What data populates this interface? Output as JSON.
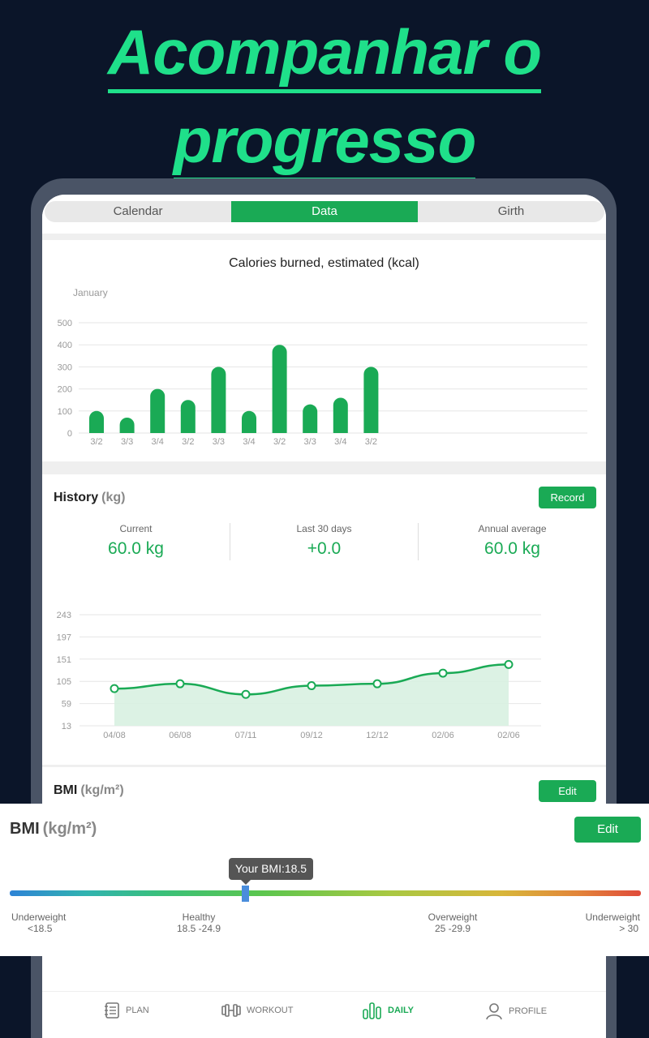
{
  "headline": {
    "line1": "Acompanhar o",
    "line2": "progresso"
  },
  "tabs": [
    {
      "label": "Calendar",
      "active": false
    },
    {
      "label": "Data",
      "active": true
    },
    {
      "label": "Girth",
      "active": false
    }
  ],
  "calories": {
    "title": "Calories burned, estimated (kcal)",
    "month": "January"
  },
  "history": {
    "title": "History",
    "unit": "(kg)",
    "record_label": "Record",
    "stats": [
      {
        "label": "Current",
        "value": "60.0 kg"
      },
      {
        "label": "Last 30 days",
        "value": "+0.0"
      },
      {
        "label": "Annual average",
        "value": "60.0 kg"
      }
    ]
  },
  "bmi": {
    "title": "BMI",
    "unit": "(kg/m²)",
    "edit_label": "Edit",
    "tooltip": "Your BMI:18.5",
    "value": 18.5,
    "ranges": [
      {
        "name": "Underweight",
        "range": "<18.5"
      },
      {
        "name": "Healthy",
        "range": "18.5 -24.9"
      },
      {
        "name": "Overweight",
        "range": "25 -29.9"
      },
      {
        "name": "Underweight",
        "range": "> 30"
      }
    ]
  },
  "nav": [
    {
      "label": "PLAN",
      "icon": "plan-icon",
      "active": false
    },
    {
      "label": "WORKOUT",
      "icon": "dumbbell-icon",
      "active": false
    },
    {
      "label": "DAILY",
      "icon": "bar-chart-icon",
      "active": true
    },
    {
      "label": "PROFILE",
      "icon": "person-icon",
      "active": false
    }
  ],
  "colors": {
    "accent": "#1aaa55",
    "headline": "#1fe08a",
    "background": "#0b1529"
  },
  "chart_data": [
    {
      "type": "bar",
      "title": "Calories burned, estimated (kcal)",
      "categories": [
        "3/2",
        "3/3",
        "3/4",
        "3/2",
        "3/3",
        "3/4",
        "3/2",
        "3/3",
        "3/4",
        "3/2"
      ],
      "values": [
        100,
        70,
        200,
        150,
        300,
        100,
        400,
        130,
        160,
        300
      ],
      "ylim": [
        0,
        500
      ],
      "yticks": [
        0,
        100,
        200,
        300,
        400,
        500
      ],
      "grid": true
    },
    {
      "type": "area",
      "categories": [
        "04/08",
        "06/08",
        "07/11",
        "09/12",
        "12/12",
        "02/06",
        "02/06"
      ],
      "values": [
        90,
        100,
        78,
        96,
        100,
        122,
        140
      ],
      "ylim": [
        13,
        243
      ],
      "yticks": [
        13,
        59,
        105,
        151,
        197,
        243
      ],
      "grid": true
    }
  ]
}
